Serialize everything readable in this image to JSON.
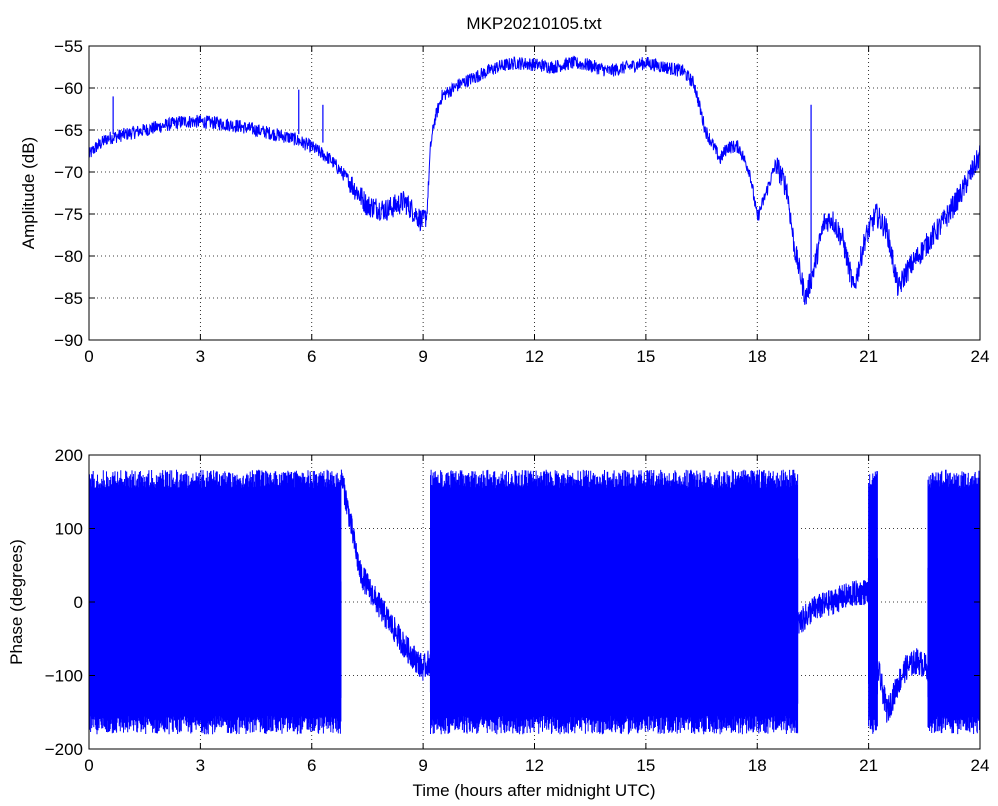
{
  "figure": {
    "title": "MKP20210105.txt",
    "line_color": "#0000ff"
  },
  "chart_data": [
    {
      "type": "line",
      "title": "MKP20210105.txt",
      "xlabel": "",
      "ylabel": "Amplitude (dB)",
      "xlim": [
        0,
        24
      ],
      "ylim": [
        -90,
        -55
      ],
      "xticks": [
        0,
        3,
        6,
        9,
        12,
        15,
        18,
        21,
        24
      ],
      "yticks": [
        -90,
        -85,
        -80,
        -75,
        -70,
        -65,
        -60,
        -55
      ],
      "grid": true,
      "color": "#0000ff",
      "series": [
        {
          "x": [
            0,
            0.2,
            0.5,
            1,
            1.5,
            2,
            2.5,
            3,
            3.5,
            4,
            4.5,
            5,
            5.5,
            6,
            6.5,
            7,
            7.5,
            8,
            8.5,
            9,
            9.1,
            9.2,
            9.3,
            9.5,
            10,
            10.5,
            11,
            11.5,
            12,
            12.5,
            13,
            13.5,
            14,
            14.5,
            15,
            15.5,
            16,
            16.3,
            16.6,
            17,
            17.2,
            17.5,
            17.8,
            18,
            18.2,
            18.5,
            18.8,
            19,
            19.3,
            19.5,
            19.8,
            20,
            20.3,
            20.6,
            20.9,
            21.2,
            21.5,
            21.8,
            22,
            22.5,
            23,
            23.5,
            24
          ],
          "y": [
            -68,
            -67,
            -66,
            -65.5,
            -65,
            -64.5,
            -64,
            -64,
            -64.2,
            -64.5,
            -65,
            -65.5,
            -66,
            -67,
            -68.5,
            -71,
            -74,
            -74.5,
            -73.5,
            -76,
            -75,
            -67,
            -64,
            -61,
            -59.5,
            -58.5,
            -57.5,
            -57,
            -57.2,
            -57.5,
            -57,
            -57.3,
            -58,
            -57.5,
            -57,
            -57.5,
            -58,
            -59.5,
            -65,
            -68.5,
            -67,
            -67,
            -70,
            -75.5,
            -73,
            -69,
            -72,
            -79,
            -85,
            -82,
            -76,
            -75.5,
            -78,
            -84,
            -78,
            -75,
            -77,
            -84,
            -82,
            -79,
            -76,
            -72.5,
            -68
          ]
        }
      ],
      "spikes": [
        {
          "x": 0.65,
          "y_top": -61,
          "y_base": -65.5
        },
        {
          "x": 5.65,
          "y_top": -60.2,
          "y_base": -65.5
        },
        {
          "x": 6.3,
          "y_top": -62,
          "y_base": -66.5
        },
        {
          "x": 19.45,
          "y_top": -62,
          "y_base": -82
        }
      ],
      "noise_band_db": 1.6
    },
    {
      "type": "line",
      "title": "",
      "xlabel": "Time (hours after midnight UTC)",
      "ylabel": "Phase (degrees)",
      "xlim": [
        0,
        24
      ],
      "ylim": [
        -200,
        200
      ],
      "xticks": [
        0,
        3,
        6,
        9,
        12,
        15,
        18,
        21,
        24
      ],
      "yticks": [
        -200,
        -100,
        0,
        100,
        200
      ],
      "ytick_labels": [
        "−200",
        "−100",
        "0",
        "100",
        "200"
      ],
      "grid": true,
      "color": "#0000ff",
      "wrap_range": [
        -180,
        180
      ],
      "wrapping_segments": [
        [
          0,
          6.8
        ],
        [
          9.2,
          19.1
        ],
        [
          21.0,
          21.25
        ],
        [
          22.6,
          24
        ]
      ],
      "series": [
        {
          "x": [
            6.8,
            7.0,
            7.3,
            7.7,
            8.0,
            8.5,
            9.0,
            9.2
          ],
          "y": [
            170,
            120,
            40,
            5,
            -20,
            -60,
            -90,
            -80
          ]
        },
        {
          "x": [
            19.1,
            19.5,
            20.0,
            20.5,
            21.0
          ],
          "y": [
            -30,
            -10,
            0,
            10,
            15
          ]
        },
        {
          "x": [
            21.25,
            21.5,
            21.8,
            22.0,
            22.3,
            22.6
          ],
          "y": [
            -90,
            -150,
            -110,
            -90,
            -80,
            -90
          ]
        }
      ]
    }
  ]
}
